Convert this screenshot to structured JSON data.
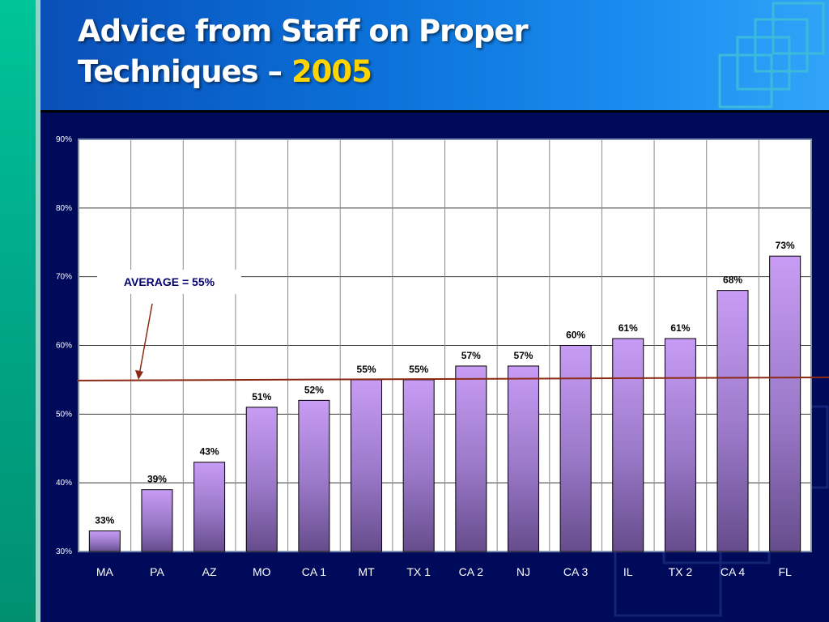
{
  "slide": {
    "title_line1": "Advice from Staff on Proper",
    "title_line2": "Techniques –",
    "title_year": "2005",
    "colors": {
      "background": "#000a5a",
      "header": "#0b6fd8",
      "bar": "#b58be8",
      "average_line": "#8b2a14",
      "year": "#ffd400"
    }
  },
  "chart_data": {
    "type": "bar",
    "categories": [
      "MA",
      "PA",
      "AZ",
      "MO",
      "CA 1",
      "MT",
      "TX 1",
      "CA 2",
      "NJ",
      "CA 3",
      "IL",
      "TX 2",
      "CA 4",
      "FL"
    ],
    "values": [
      33,
      39,
      43,
      51,
      52,
      55,
      55,
      57,
      57,
      60,
      61,
      61,
      68,
      73
    ],
    "value_labels": [
      "33%",
      "39%",
      "43%",
      "51%",
      "52%",
      "55%",
      "55%",
      "57%",
      "57%",
      "60%",
      "61%",
      "61%",
      "68%",
      "73%"
    ],
    "ylim": [
      30,
      90
    ],
    "yticks": [
      "30%",
      "40%",
      "50%",
      "60%",
      "70%",
      "80%",
      "90%"
    ],
    "ytick_values": [
      30,
      40,
      50,
      60,
      70,
      80,
      90
    ],
    "grid": true,
    "average": {
      "value": 55,
      "label": "AVERAGE = 55%"
    },
    "title": "",
    "xlabel": "",
    "ylabel": ""
  }
}
